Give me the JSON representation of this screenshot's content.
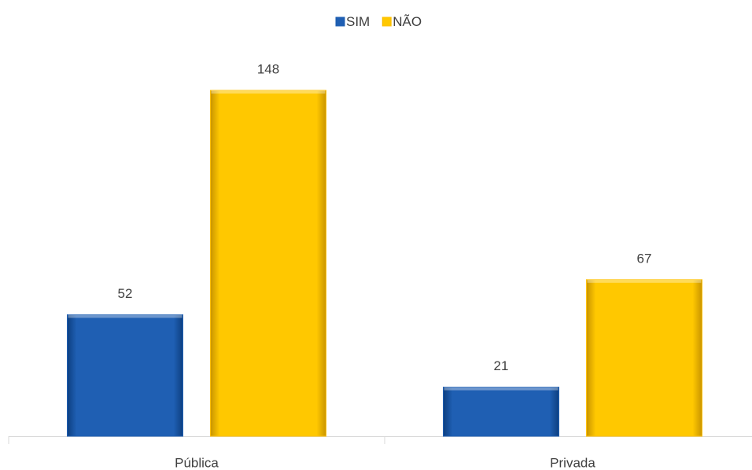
{
  "chart_data": {
    "type": "bar",
    "categories": [
      "Pública",
      "Privada"
    ],
    "series": [
      {
        "name": "SIM",
        "color": "#1f5fb3",
        "values": [
          52,
          21
        ]
      },
      {
        "name": "NÃO",
        "color": "#ffc000",
        "values": [
          148,
          67
        ]
      }
    ],
    "legend": "top"
  }
}
